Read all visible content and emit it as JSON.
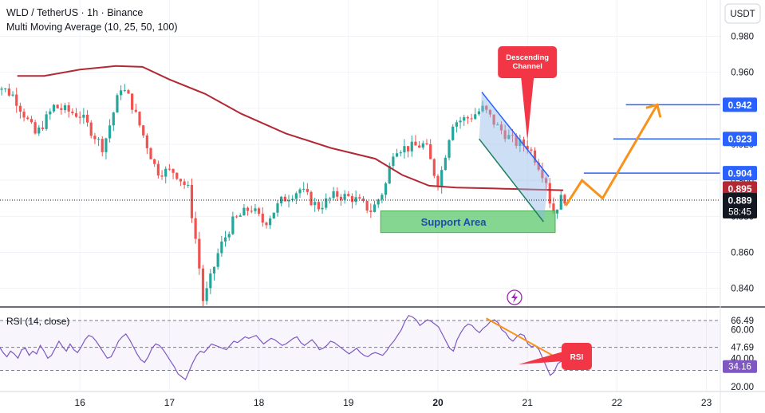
{
  "header": {
    "symbol_line": "WLD / TetherUS · 1h · Binance",
    "indicator_line": "Multi Moving Average (10, 25, 50, 100)"
  },
  "currency_button": "USDT",
  "colors": {
    "up": "#26a69a",
    "down": "#ef5350",
    "ma": "#b22833",
    "blue_line": "#2962ff",
    "projection": "#f7931a",
    "rsi_line": "#7e57c2",
    "support_fill": "#6fcf7d",
    "channel_fill": "#90b8e8",
    "callout": "#f23645"
  },
  "chart_data": [
    {
      "type": "candlestick",
      "price_axis": {
        "ticks": [
          "0.980",
          "0.960",
          "0.940",
          "0.920",
          "0.900",
          "0.880",
          "0.860",
          "0.840"
        ],
        "ylim": [
          0.83,
          0.985
        ]
      },
      "time_axis": {
        "ticks": [
          "16",
          "17",
          "18",
          "19",
          "20",
          "21",
          "22",
          "23"
        ]
      },
      "series": [
        {
          "name": "",
          "kind": "moving_average",
          "points": [
            [
              15.3,
              0.958
            ],
            [
              15.6,
              0.958
            ],
            [
              16.0,
              0.9615
            ],
            [
              16.4,
              0.9635
            ],
            [
              16.7,
              0.963
            ],
            [
              17.0,
              0.956
            ],
            [
              17.4,
              0.948
            ],
            [
              17.8,
              0.937
            ],
            [
              18.3,
              0.926
            ],
            [
              18.8,
              0.918
            ],
            [
              19.3,
              0.912
            ],
            [
              19.6,
              0.903
            ],
            [
              19.9,
              0.897
            ],
            [
              20.2,
              0.896
            ],
            [
              20.6,
              0.8955
            ],
            [
              21.0,
              0.895
            ],
            [
              21.4,
              0.8945
            ]
          ]
        }
      ],
      "horizontal_levels": [
        {
          "label": "0.942",
          "value": 0.942,
          "x_from": 22.1
        },
        {
          "label": "0.923",
          "value": 0.923,
          "x_from": 21.96
        },
        {
          "label": "0.904",
          "value": 0.904,
          "x_from": 21.63
        }
      ],
      "price_labels": [
        {
          "label": "0.895",
          "value": 0.8955,
          "kind": "moving_average"
        },
        {
          "label": "0.889",
          "value": 0.889,
          "kind": "last_price",
          "countdown": "58:45"
        }
      ],
      "last_price": 0.889,
      "support_area": {
        "label": "Support Area",
        "x": [
          19.36,
          21.31
        ],
        "y": [
          0.871,
          0.883
        ]
      },
      "descending_channel": {
        "upper": [
          [
            20.49,
            0.949
          ],
          [
            21.24,
            0.902
          ]
        ],
        "lower": [
          [
            20.46,
            0.923
          ],
          [
            21.18,
            0.877
          ]
        ]
      },
      "projection_path": [
        [
          21.43,
          0.886
        ],
        [
          21.61,
          0.9
        ],
        [
          21.84,
          0.89
        ],
        [
          22.45,
          0.942
        ]
      ],
      "annotations": [
        {
          "text_lines": [
            "Descending",
            "Channel"
          ],
          "points_to": [
            21.0,
            0.922
          ]
        }
      ]
    },
    {
      "type": "line",
      "title": "RSI (14, close)",
      "axis_ticks": [
        "60.00",
        "40.00",
        "20.00"
      ],
      "ylim": [
        15,
        75
      ],
      "levels": [
        70,
        50,
        30
      ],
      "value_labels": [
        {
          "label": "66.49",
          "value": 66.49
        },
        {
          "label": "47.69",
          "value": 47.69
        },
        {
          "label": "34.16",
          "value": 34.16,
          "current": true
        }
      ],
      "series": [
        {
          "name": "",
          "values": [
            48,
            44,
            41,
            45,
            43,
            40,
            46,
            47,
            42,
            45,
            43,
            49,
            45,
            40,
            42,
            47,
            52,
            48,
            45,
            50,
            46,
            44,
            48,
            53,
            56,
            55,
            52,
            48,
            44,
            40,
            41,
            46,
            52,
            55,
            57,
            53,
            48,
            43,
            39,
            37,
            41,
            47,
            50,
            49,
            46,
            42,
            38,
            34,
            29,
            27,
            25,
            31,
            37,
            42,
            45,
            44,
            47,
            50,
            49,
            48,
            47,
            46,
            49,
            52,
            51,
            53,
            55,
            54,
            55,
            56,
            53,
            50,
            52,
            54,
            53,
            51,
            49,
            50,
            52,
            54,
            55,
            51,
            49,
            51,
            53,
            50,
            46,
            47,
            49,
            52,
            51,
            49,
            47,
            45,
            43,
            45,
            47,
            44,
            42,
            41,
            43,
            44,
            43,
            42,
            45,
            49,
            52,
            56,
            60,
            66,
            70,
            69,
            67,
            63,
            65,
            67,
            66,
            64,
            62,
            57,
            52,
            47,
            45,
            53,
            58,
            62,
            64,
            63,
            60,
            58,
            61,
            63,
            66,
            67,
            65,
            60,
            58,
            54,
            52,
            55,
            57,
            56,
            50,
            48,
            49,
            46,
            40,
            34,
            28,
            30,
            36,
            38,
            34
          ]
        }
      ],
      "divergence_line": [
        [
          20.54,
          68
        ],
        [
          21.48,
          35
        ]
      ],
      "annotations": [
        {
          "text": "RSI"
        }
      ]
    }
  ]
}
